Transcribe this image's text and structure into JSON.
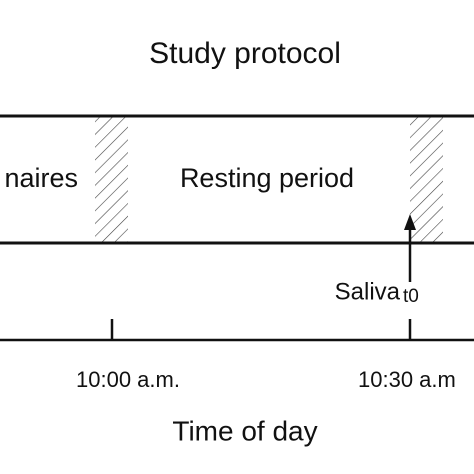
{
  "title": "Study protocol",
  "phases": [
    "naires",
    "Resting period"
  ],
  "sample": {
    "label": "Saliva",
    "sub": "t0"
  },
  "axis": {
    "ticks": [
      "10:00 a.m.",
      "10:30 a.m"
    ],
    "label": "Time of day"
  }
}
